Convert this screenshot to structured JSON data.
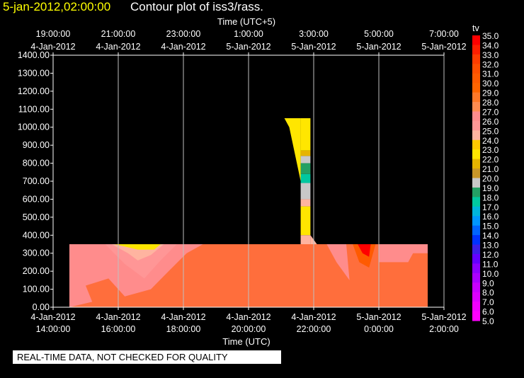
{
  "header": {
    "timestamp": "5-jan-2012,02:00:00",
    "title": "Contour plot of iss3/rass."
  },
  "footer": {
    "quality_note": "REAL-TIME DATA, NOT CHECKED FOR QUALITY"
  },
  "chart_data": {
    "type": "heatmap",
    "variable": "tv",
    "xlabel_bottom": "Time (UTC)",
    "xlabel_top": "Time (UTC+5)",
    "x_ticks_bottom": [
      {
        "date": "4-Jan-2012",
        "time": "14:00:00"
      },
      {
        "date": "4-Jan-2012",
        "time": "16:00:00"
      },
      {
        "date": "4-Jan-2012",
        "time": "18:00:00"
      },
      {
        "date": "4-Jan-2012",
        "time": "20:00:00"
      },
      {
        "date": "4-Jan-2012",
        "time": "22:00:00"
      },
      {
        "date": "5-Jan-2012",
        "time": "0:00:00"
      },
      {
        "date": "5-Jan-2012",
        "time": "2:00:00"
      }
    ],
    "x_ticks_top": [
      {
        "time": "19:00:00",
        "date": "4-Jan-2012"
      },
      {
        "time": "21:00:00",
        "date": "4-Jan-2012"
      },
      {
        "time": "23:00:00",
        "date": "4-Jan-2012"
      },
      {
        "time": "1:00:00",
        "date": "5-Jan-2012"
      },
      {
        "time": "3:00:00",
        "date": "5-Jan-2012"
      },
      {
        "time": "5:00:00",
        "date": "5-Jan-2012"
      },
      {
        "time": "7:00:00",
        "date": "5-Jan-2012"
      }
    ],
    "xlim": [
      "2012-01-04 14:00",
      "2012-01-05 02:00"
    ],
    "ylim": [
      0,
      1400
    ],
    "y_ticks": [
      "0.00",
      "100.00",
      "200.00",
      "300.00",
      "400.00",
      "500.00",
      "600.00",
      "700.00",
      "800.00",
      "900.00",
      "1000.00",
      "1100.00",
      "1200.00",
      "1300.00",
      "1400.00"
    ],
    "grid": "vertical lines at x ticks",
    "colorbar": {
      "label": "tv",
      "levels": [
        "35.0",
        "34.0",
        "33.0",
        "32.0",
        "31.0",
        "30.0",
        "29.0",
        "28.0",
        "27.0",
        "26.0",
        "25.0",
        "24.0",
        "23.0",
        "22.0",
        "21.0",
        "20.0",
        "19.0",
        "18.0",
        "17.0",
        "16.0",
        "15.0",
        "14.0",
        "13.0",
        "12.0",
        "11.0",
        "10.0",
        "9.0",
        "8.0",
        "7.0",
        "6.0",
        "5.0"
      ],
      "colors": [
        "#ff0000",
        "#ff1e00",
        "#ff3c00",
        "#ff4e00",
        "#ff5a00",
        "#ff6400",
        "#ff7828",
        "#ff8c50",
        "#ff8c8c",
        "#ff9696",
        "#ffb4a0",
        "#ffc800",
        "#ffe600",
        "#e6b400",
        "#c89628",
        "#c8c8c8",
        "#23a064",
        "#00c8a0",
        "#00b4dc",
        "#0096ff",
        "#0064ff",
        "#0032ff",
        "#3c1ee6",
        "#6400ff",
        "#8c00ff",
        "#aa00ff",
        "#c800ff",
        "#dc00ff",
        "#f000ff",
        "#ff00ff"
      ]
    }
  }
}
